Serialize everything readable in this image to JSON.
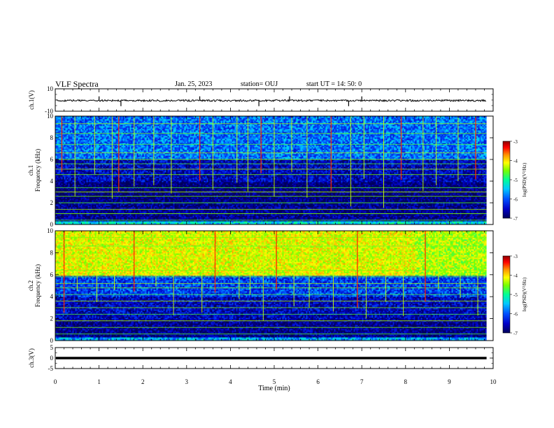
{
  "header": {
    "title": "VLF Spectra",
    "date": "Jan. 25, 2023",
    "station": "station= OUJ",
    "start": "start  UT =   14: 50: 0"
  },
  "colors": {
    "waveform": "#000000",
    "colormap": [
      "#00005a",
      "#0000c8",
      "#0050ff",
      "#00c8ff",
      "#00ff96",
      "#78ff00",
      "#ffff00",
      "#ff9600",
      "#ff0000",
      "#8c0000"
    ]
  },
  "chart_data": [
    {
      "type": "line",
      "name": "ch1-waveform",
      "ylabel": "ch.1(V)",
      "ylim": [
        -10,
        10
      ],
      "yticks": [
        "10",
        "-10"
      ],
      "baseline": -0.5,
      "spikes_min": [
        1.0,
        1.5,
        3.3,
        4.65,
        5.35,
        6.7,
        7.0
      ]
    },
    {
      "type": "heatmap",
      "name": "ch1-spectrogram",
      "ylabel_line1": "ch.1",
      "ylabel_line2": "Frequency (kHz)",
      "ylim": [
        0,
        10
      ],
      "yticks": [
        "0",
        "2",
        "4",
        "6",
        "8",
        "10"
      ],
      "x_extent_min": 9.85,
      "colorbar": {
        "label": "log(PSD)(V²/Hz)",
        "range": [
          -7,
          -3
        ],
        "ticks": [
          "-3",
          "-4",
          "-5",
          "-6",
          "-7"
        ]
      },
      "bands": [
        {
          "f_lo": 0.0,
          "f_hi": 0.3,
          "level": -5.5
        },
        {
          "f_lo": 0.3,
          "f_hi": 2.0,
          "level": -6.8
        },
        {
          "f_lo": 2.0,
          "f_hi": 4.0,
          "level": -6.9
        },
        {
          "f_lo": 4.0,
          "f_hi": 6.0,
          "level": -6.6
        },
        {
          "f_lo": 6.0,
          "f_hi": 10.0,
          "level": -6.0
        }
      ],
      "lines_khz": [
        0.4,
        1.0,
        1.4,
        2.0,
        2.6,
        3.0,
        3.4,
        4.6,
        5.1,
        5.6,
        6.0,
        6.6,
        7.4,
        8.4,
        9.3
      ],
      "sferics_min": [
        0.15,
        0.45,
        0.9,
        1.3,
        1.45,
        1.8,
        2.25,
        2.65,
        3.3,
        3.6,
        4.15,
        4.4,
        4.7,
        5.0,
        5.4,
        5.75,
        6.3,
        6.75,
        7.05,
        7.5,
        7.9,
        8.4,
        8.7,
        9.2,
        9.6
      ]
    },
    {
      "type": "heatmap",
      "name": "ch2-spectrogram",
      "ylabel_line1": "ch.2",
      "ylabel_line2": "Frequency (kHz)",
      "ylim": [
        0,
        10
      ],
      "yticks": [
        "0",
        "2",
        "4",
        "6",
        "8",
        "10"
      ],
      "x_extent_min": 9.85,
      "colorbar": {
        "label": "log(PSD)(V²/Hz)",
        "range": [
          -7,
          -3
        ],
        "ticks": [
          "-3",
          "-4",
          "-5",
          "-6",
          "-7"
        ]
      },
      "bands": [
        {
          "f_lo": 0.0,
          "f_hi": 0.3,
          "level": -5.8
        },
        {
          "f_lo": 0.3,
          "f_hi": 2.0,
          "level": -6.8
        },
        {
          "f_lo": 2.0,
          "f_hi": 4.0,
          "level": -6.6
        },
        {
          "f_lo": 4.0,
          "f_hi": 6.0,
          "level": -6.2
        },
        {
          "f_lo": 6.0,
          "f_hi": 10.0,
          "level": -4.4
        }
      ],
      "bands_after_8min": [
        {
          "f_lo": 6.0,
          "f_hi": 10.0,
          "level": -4.6
        }
      ],
      "lines_khz": [
        0.6,
        1.2,
        1.8,
        2.4,
        3.0,
        3.6,
        4.2,
        4.8,
        5.2,
        5.8,
        6.4,
        7.6,
        8.6,
        9.4
      ],
      "sferics_min": [
        0.2,
        0.5,
        0.95,
        1.35,
        1.8,
        2.3,
        2.7,
        3.35,
        3.65,
        4.2,
        4.45,
        4.75,
        5.05,
        5.45,
        5.8,
        6.35,
        6.9,
        7.1,
        7.55,
        7.95,
        8.45,
        8.75,
        9.25,
        9.65
      ]
    },
    {
      "type": "line",
      "name": "ch3-waveform",
      "ylabel": "ch.3(V)",
      "ylim": [
        -5,
        5
      ],
      "yticks": [
        "5",
        "0",
        "-5"
      ],
      "baseline": 0,
      "xlabel": "Time (min)",
      "xlim": [
        0,
        10
      ],
      "xticks": [
        "0",
        "1",
        "2",
        "3",
        "4",
        "5",
        "6",
        "7",
        "8",
        "9",
        "10"
      ]
    }
  ]
}
